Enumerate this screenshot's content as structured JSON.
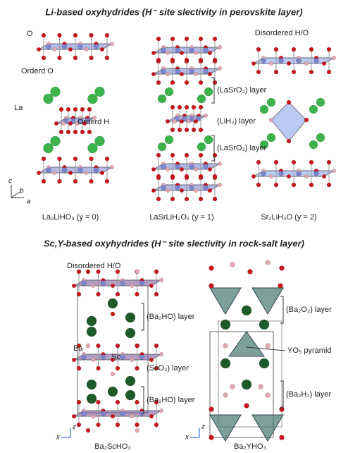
{
  "top": {
    "title": "Li-based oxyhydrides (H⁻ site slectivity in perovskite layer)",
    "labels": {
      "o": "O",
      "ordered_o": "Orderd O",
      "la": "La",
      "ordered_h": "Orderd H",
      "disordered": "Disordered H/O",
      "layer1": "(LaSrO₂) layer",
      "layer2": "(LiH₂) layer",
      "layer3": "(LaSrO₂) layer",
      "axis_c": "c",
      "axis_b": "b",
      "axis_a": "a"
    },
    "captions": [
      "La₂LiHO₃ (y = 0)",
      "LaSrLiH₂O₂ (y = 1)",
      "Sr₂LiH₃O (y = 2)"
    ]
  },
  "bottom": {
    "title": "Sc,Y-based oxyhydrides (H⁻ site slectivity in rock-salt layer)",
    "labels": {
      "disordered": "Disordered H/O",
      "layer1": "(Ba₂HO) layer",
      "ba": "Ba",
      "sc": "Sc",
      "layer2": "(ScO₂) layer",
      "layer3": "(Ba₂HO) layer",
      "layer4": "(Ba₂O₂) layer",
      "pyramid": "YO₅ pyramid",
      "layer5": "(Ba₂H₂) layer",
      "axis_z1": "z",
      "axis_x1": "x",
      "axis_z2": "z",
      "axis_x2": "x"
    },
    "captions": [
      "Ba₂ScHO₃",
      "Ba₂YHO₃"
    ]
  }
}
